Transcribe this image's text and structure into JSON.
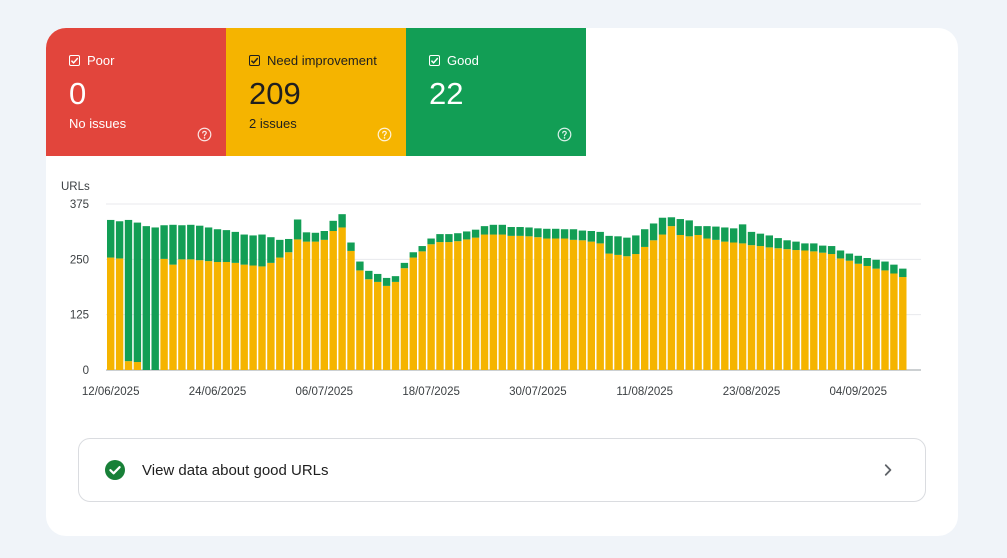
{
  "tiles": [
    {
      "key": "poor",
      "label": "Poor",
      "count": "0",
      "sub": "No issues",
      "color": "#e2453c",
      "checked": true
    },
    {
      "key": "need",
      "label": "Need improvement",
      "count": "209",
      "sub": "2 issues",
      "color": "#f5b400",
      "checked": true
    },
    {
      "key": "good",
      "label": "Good",
      "count": "22",
      "sub": "",
      "color": "#129e55",
      "checked": true
    }
  ],
  "view_link": {
    "label": "View data about good URLs",
    "icon": "check-circle-icon",
    "action_icon": "chevron-right-icon"
  },
  "chart_data": {
    "type": "bar",
    "stacked": true,
    "ylabel": "URLs",
    "ylim": [
      0,
      375
    ],
    "yticks": [
      0,
      125,
      250,
      375
    ],
    "grid": true,
    "xtick_labels": [
      "12/06/2025",
      "24/06/2025",
      "06/07/2025",
      "18/07/2025",
      "30/07/2025",
      "11/08/2025",
      "23/08/2025",
      "04/09/2025"
    ],
    "xtick_indices": [
      0,
      12,
      24,
      36,
      48,
      60,
      72,
      84
    ],
    "series": [
      {
        "key": "need",
        "color": "#f5b400",
        "values": [
          254,
          252,
          20,
          18,
          0,
          0,
          251,
          238,
          250,
          250,
          248,
          246,
          244,
          244,
          242,
          238,
          236,
          234,
          242,
          254,
          266,
          295,
          290,
          290,
          294,
          314,
          322,
          269,
          225,
          205,
          199,
          190,
          199,
          230,
          254,
          268,
          284,
          289,
          289,
          291,
          295,
          299,
          306,
          306,
          306,
          303,
          303,
          302,
          300,
          297,
          297,
          297,
          294,
          293,
          290,
          286,
          263,
          260,
          257,
          262,
          278,
          293,
          306,
          325,
          305,
          302,
          305,
          297,
          294,
          290,
          288,
          286,
          282,
          280,
          277,
          275,
          273,
          271,
          270,
          268,
          265,
          262,
          252,
          247,
          240,
          235,
          229,
          225,
          218,
          210
        ]
      },
      {
        "key": "good",
        "color": "#129e55",
        "values": [
          85,
          84,
          319,
          315,
          325,
          322,
          76,
          90,
          77,
          78,
          78,
          76,
          74,
          72,
          70,
          68,
          68,
          72,
          58,
          40,
          30,
          45,
          21,
          20,
          20,
          23,
          30,
          19,
          20,
          19,
          18,
          18,
          13,
          12,
          12,
          12,
          13,
          18,
          18,
          18,
          18,
          18,
          19,
          22,
          22,
          20,
          20,
          20,
          20,
          22,
          22,
          21,
          24,
          22,
          24,
          26,
          40,
          42,
          42,
          42,
          40,
          38,
          38,
          20,
          36,
          36,
          20,
          28,
          30,
          32,
          32,
          43,
          30,
          28,
          27,
          23,
          20,
          19,
          16,
          18,
          16,
          18,
          18,
          16,
          18,
          18,
          20,
          20,
          20,
          19
        ]
      }
    ]
  }
}
